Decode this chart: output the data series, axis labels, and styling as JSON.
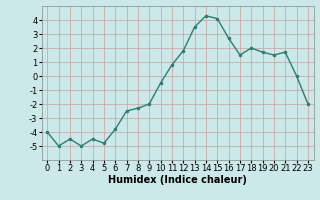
{
  "x": [
    0,
    1,
    2,
    3,
    4,
    5,
    6,
    7,
    8,
    9,
    10,
    11,
    12,
    13,
    14,
    15,
    16,
    17,
    18,
    19,
    20,
    21,
    22,
    23
  ],
  "y": [
    -4.0,
    -5.0,
    -4.5,
    -5.0,
    -4.5,
    -4.8,
    -3.8,
    -2.5,
    -2.3,
    -2.0,
    -0.5,
    0.8,
    1.8,
    3.5,
    4.3,
    4.1,
    2.7,
    1.5,
    2.0,
    1.7,
    1.5,
    1.7,
    0.0,
    -2.0
  ],
  "line_color": "#2e7d6e",
  "marker": ".",
  "marker_size": 3,
  "bg_color": "#cce8e8",
  "grid_color": "#c8a0a0",
  "xlabel": "Humidex (Indice chaleur)",
  "xlim": [
    -0.5,
    23.5
  ],
  "ylim": [
    -6,
    5
  ],
  "yticks": [
    -5,
    -4,
    -3,
    -2,
    -1,
    0,
    1,
    2,
    3,
    4
  ],
  "xticks": [
    0,
    1,
    2,
    3,
    4,
    5,
    6,
    7,
    8,
    9,
    10,
    11,
    12,
    13,
    14,
    15,
    16,
    17,
    18,
    19,
    20,
    21,
    22,
    23
  ],
  "xlabel_fontsize": 7,
  "tick_fontsize": 6,
  "line_width": 1.0
}
